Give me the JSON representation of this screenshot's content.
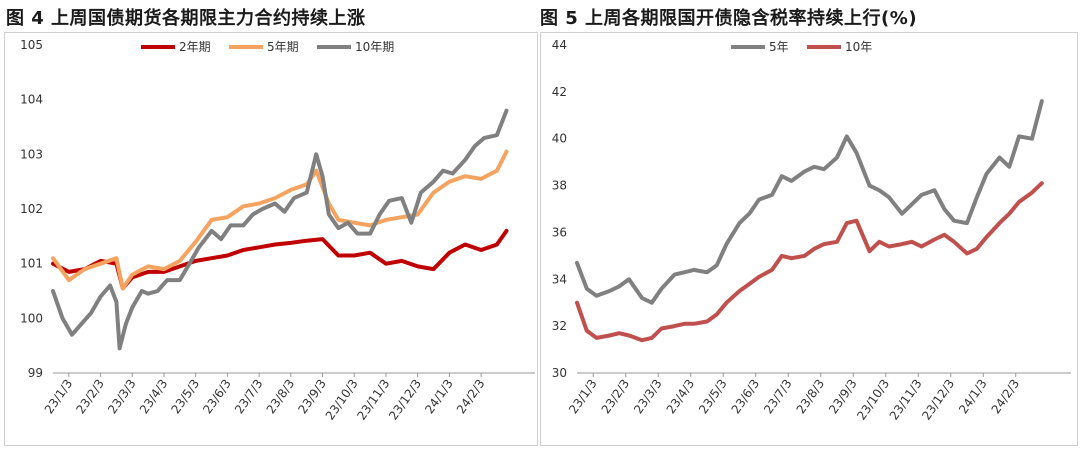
{
  "charts": [
    {
      "title": "图 4  上周国债期货各期限主力合约持续上涨",
      "chart_data": {
        "type": "line",
        "title": "图 4  上周国债期货各期限主力合约持续上涨",
        "xlabel": "",
        "ylabel": "",
        "ylim": [
          99,
          105
        ],
        "yticks": [
          99,
          100,
          101,
          102,
          103,
          104,
          105
        ],
        "xlim": [
          0,
          15.2
        ],
        "xticks": [
          "23/1/3",
          "23/2/3",
          "23/3/3",
          "23/4/3",
          "23/5/3",
          "23/6/3",
          "23/7/3",
          "23/8/3",
          "23/9/3",
          "23/10/3",
          "23/11/3",
          "23/12/3",
          "24/1/3",
          "24/2/3"
        ],
        "legend": "top-center",
        "grid": false,
        "series": [
          {
            "name": "2年期",
            "color": "#C00000",
            "x": [
              0,
              0.5,
              1.0,
              1.5,
              2.0,
              2.2,
              2.5,
              3.0,
              3.5,
              4.0,
              4.5,
              5.0,
              5.5,
              6.0,
              6.5,
              7.0,
              7.5,
              8.0,
              8.5,
              9.0,
              9.5,
              10.0,
              10.5,
              11.0,
              11.5,
              12.0,
              12.5,
              13.0,
              13.5,
              14.0,
              14.3
            ],
            "y": [
              101.0,
              100.85,
              100.9,
              101.05,
              101.0,
              100.55,
              100.75,
              100.85,
              100.85,
              100.95,
              101.05,
              101.1,
              101.15,
              101.25,
              101.3,
              101.35,
              101.38,
              101.42,
              101.45,
              101.15,
              101.15,
              101.2,
              101.0,
              101.05,
              100.95,
              100.9,
              101.2,
              101.35,
              101.25,
              101.35,
              101.6
            ]
          },
          {
            "name": "5年期",
            "color": "#F4A460",
            "x": [
              0,
              0.5,
              1.0,
              1.5,
              2.0,
              2.2,
              2.5,
              3.0,
              3.5,
              4.0,
              4.5,
              5.0,
              5.5,
              6.0,
              6.5,
              7.0,
              7.5,
              8.0,
              8.3,
              8.7,
              9.0,
              9.5,
              10.0,
              10.5,
              11.0,
              11.5,
              12.0,
              12.5,
              13.0,
              13.5,
              14.0,
              14.3
            ],
            "y": [
              101.1,
              100.7,
              100.9,
              101.0,
              101.1,
              100.55,
              100.8,
              100.95,
              100.9,
              101.05,
              101.4,
              101.8,
              101.85,
              102.05,
              102.1,
              102.2,
              102.35,
              102.45,
              102.7,
              102.1,
              101.8,
              101.75,
              101.7,
              101.8,
              101.85,
              101.9,
              102.3,
              102.5,
              102.6,
              102.55,
              102.7,
              103.05
            ]
          },
          {
            "name": "10年期",
            "color": "#808080",
            "x": [
              0,
              0.3,
              0.6,
              0.9,
              1.2,
              1.5,
              1.8,
              2.0,
              2.1,
              2.3,
              2.5,
              2.8,
              3.0,
              3.3,
              3.6,
              4.0,
              4.3,
              4.6,
              5.0,
              5.3,
              5.6,
              6.0,
              6.3,
              6.6,
              7.0,
              7.3,
              7.6,
              8.0,
              8.3,
              8.5,
              8.7,
              9.0,
              9.3,
              9.6,
              10.0,
              10.3,
              10.6,
              11.0,
              11.3,
              11.6,
              12.0,
              12.3,
              12.6,
              13.0,
              13.3,
              13.6,
              14.0,
              14.3
            ],
            "y": [
              100.5,
              100.0,
              99.7,
              99.9,
              100.1,
              100.4,
              100.6,
              100.3,
              99.45,
              99.9,
              100.2,
              100.5,
              100.45,
              100.5,
              100.7,
              100.7,
              101.0,
              101.3,
              101.6,
              101.45,
              101.7,
              101.7,
              101.9,
              102.0,
              102.1,
              101.95,
              102.2,
              102.3,
              103.0,
              102.6,
              101.9,
              101.65,
              101.75,
              101.55,
              101.55,
              101.9,
              102.15,
              102.2,
              101.75,
              102.3,
              102.5,
              102.7,
              102.65,
              102.9,
              103.15,
              103.3,
              103.35,
              103.8
            ]
          }
        ]
      }
    },
    {
      "title": "图 5  上周各期限国开债隐含税率持续上行(%)",
      "chart_data": {
        "type": "line",
        "title": "图 5  上周各期限国开债隐含税率持续上行(%)",
        "xlabel": "",
        "ylabel": "",
        "ylim": [
          30,
          44
        ],
        "yticks": [
          30,
          32,
          34,
          36,
          38,
          40,
          42,
          44
        ],
        "xlim": [
          0,
          15.2
        ],
        "xticks": [
          "23/1/3",
          "23/2/3",
          "23/3/3",
          "23/4/3",
          "23/5/3",
          "23/6/3",
          "23/7/3",
          "23/8/3",
          "23/9/3",
          "23/10/3",
          "23/11/3",
          "23/12/3",
          "24/1/3",
          "24/2/3"
        ],
        "legend": "top-center",
        "grid": false,
        "series": [
          {
            "name": "5年",
            "color": "#808080",
            "x": [
              0,
              0.3,
              0.6,
              1.0,
              1.3,
              1.6,
              2.0,
              2.3,
              2.6,
              3.0,
              3.3,
              3.6,
              4.0,
              4.3,
              4.6,
              5.0,
              5.3,
              5.6,
              6.0,
              6.3,
              6.6,
              7.0,
              7.3,
              7.6,
              8.0,
              8.3,
              8.6,
              9.0,
              9.3,
              9.6,
              10.0,
              10.3,
              10.6,
              11.0,
              11.3,
              11.6,
              12.0,
              12.3,
              12.6,
              13.0,
              13.3,
              13.6,
              14.0,
              14.3
            ],
            "y": [
              34.7,
              33.6,
              33.3,
              33.5,
              33.7,
              34.0,
              33.2,
              33.0,
              33.6,
              34.2,
              34.3,
              34.4,
              34.3,
              34.6,
              35.5,
              36.4,
              36.8,
              37.4,
              37.6,
              38.4,
              38.2,
              38.6,
              38.8,
              38.7,
              39.2,
              40.1,
              39.4,
              38.0,
              37.8,
              37.5,
              36.8,
              37.2,
              37.6,
              37.8,
              37.0,
              36.5,
              36.4,
              37.5,
              38.5,
              39.2,
              38.8,
              40.1,
              40.0,
              41.6
            ]
          },
          {
            "name": "10年",
            "color": "#C0504D",
            "x": [
              0,
              0.3,
              0.6,
              1.0,
              1.3,
              1.6,
              2.0,
              2.3,
              2.6,
              3.0,
              3.3,
              3.6,
              4.0,
              4.3,
              4.6,
              5.0,
              5.3,
              5.6,
              6.0,
              6.3,
              6.6,
              7.0,
              7.3,
              7.6,
              8.0,
              8.3,
              8.6,
              9.0,
              9.3,
              9.6,
              10.0,
              10.3,
              10.6,
              11.0,
              11.3,
              11.6,
              12.0,
              12.3,
              12.6,
              13.0,
              13.3,
              13.6,
              14.0,
              14.3
            ],
            "y": [
              33.0,
              31.8,
              31.5,
              31.6,
              31.7,
              31.6,
              31.4,
              31.5,
              31.9,
              32.0,
              32.1,
              32.1,
              32.2,
              32.5,
              33.0,
              33.5,
              33.8,
              34.1,
              34.4,
              35.0,
              34.9,
              35.0,
              35.3,
              35.5,
              35.6,
              36.4,
              36.5,
              35.2,
              35.6,
              35.4,
              35.5,
              35.6,
              35.4,
              35.7,
              35.9,
              35.6,
              35.1,
              35.3,
              35.8,
              36.4,
              36.8,
              37.3,
              37.7,
              38.1
            ]
          }
        ]
      }
    }
  ]
}
